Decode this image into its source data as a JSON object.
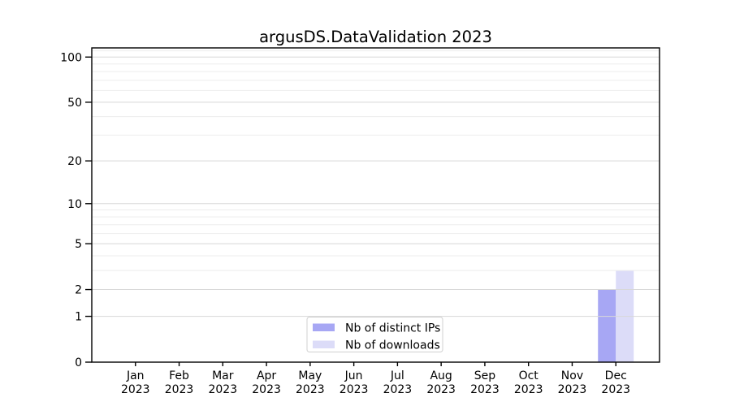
{
  "chart_data": {
    "type": "bar",
    "title": "argusDS.DataValidation 2023",
    "categories": [
      "Jan",
      "Feb",
      "Mar",
      "Apr",
      "May",
      "Jun",
      "Jul",
      "Aug",
      "Sep",
      "Oct",
      "Nov",
      "Dec"
    ],
    "category_sublabel": "2023",
    "series": [
      {
        "name": "Nb of distinct IPs",
        "color": "#a7a7f4",
        "values": [
          0,
          0,
          0,
          0,
          0,
          0,
          0,
          0,
          0,
          0,
          0,
          2
        ]
      },
      {
        "name": "Nb of downloads",
        "color": "#dcdcf8",
        "values": [
          0,
          0,
          0,
          0,
          0,
          0,
          0,
          0,
          0,
          0,
          0,
          3
        ]
      }
    ],
    "xlabel": "",
    "ylabel": "",
    "yscale": "log1p",
    "ylim": [
      0,
      115
    ],
    "yticks_major": [
      0,
      1,
      2,
      5,
      10,
      20,
      50,
      100
    ],
    "yticks_minor": [
      3,
      4,
      6,
      7,
      8,
      9,
      30,
      40,
      60,
      70,
      80,
      90,
      110
    ],
    "grid": true,
    "legend": {
      "position": "lower center",
      "items": [
        "Nb of distinct IPs",
        "Nb of downloads"
      ]
    },
    "colors": {
      "background": "#ffffff",
      "grid_major": "#d8d8d8",
      "grid_minor": "#ededed",
      "axis": "#000000",
      "text": "#000000",
      "legend_border": "#d0d0d0",
      "legend_background": "#ffffff"
    }
  }
}
